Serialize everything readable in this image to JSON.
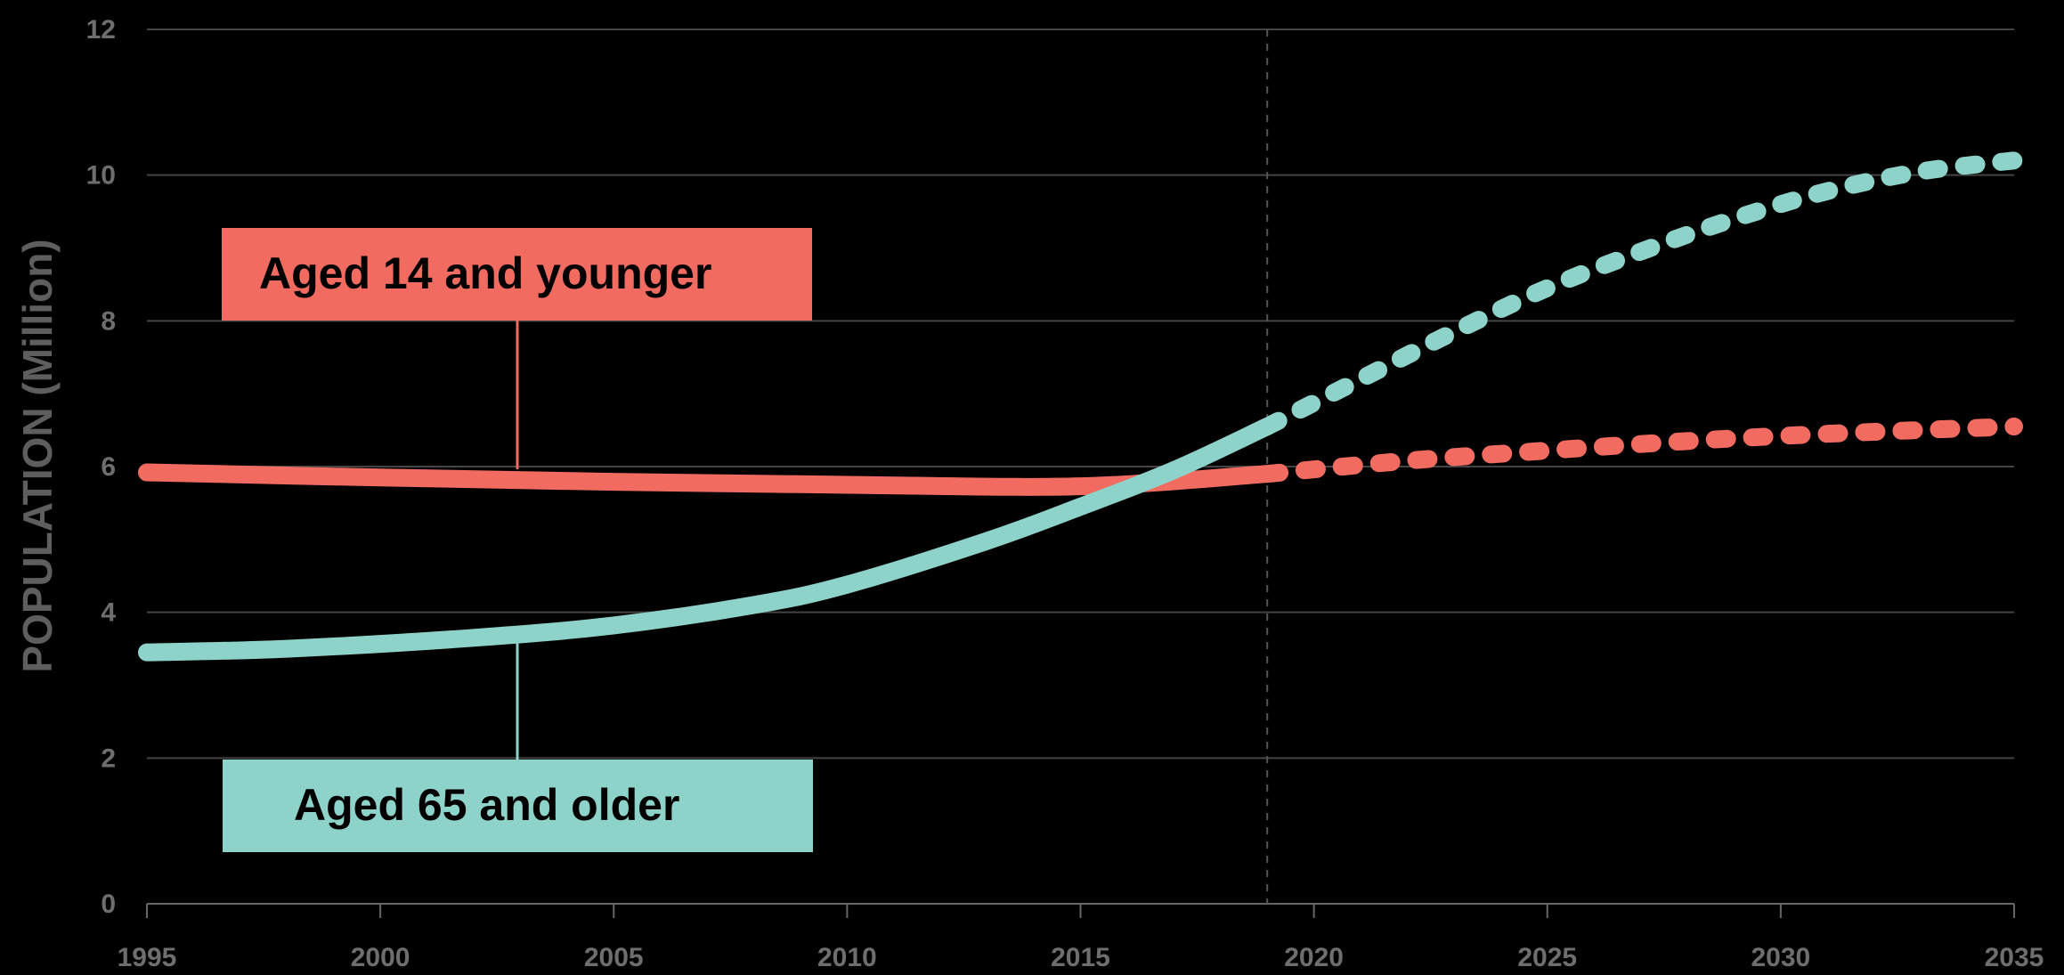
{
  "chart_data": {
    "type": "line",
    "xlabel": "",
    "ylabel": "POPULATION (Million)",
    "xlim": [
      1995,
      2035
    ],
    "ylim": [
      0,
      12
    ],
    "x_ticks": [
      "1995",
      "2000",
      "2005",
      "2010",
      "2015",
      "2020",
      "2025",
      "2030",
      "2035"
    ],
    "y_ticks": [
      "0",
      "2",
      "4",
      "6",
      "8",
      "10",
      "12"
    ],
    "grid": "horizontal",
    "projection_start": 2019,
    "series": [
      {
        "name": "Aged 14 and younger",
        "color": "#f26b60",
        "actual": {
          "x": [
            1995,
            2000,
            2005,
            2010,
            2015,
            2019
          ],
          "y": [
            5.92,
            5.85,
            5.79,
            5.75,
            5.73,
            5.9
          ]
        },
        "projected": {
          "x": [
            2019,
            2022,
            2025,
            2028,
            2031,
            2035
          ],
          "y": [
            5.9,
            6.08,
            6.22,
            6.35,
            6.45,
            6.55
          ]
        }
      },
      {
        "name": "Aged 65 and older",
        "color": "#8ed3c9",
        "actual": {
          "x": [
            1995,
            1998,
            2002,
            2005,
            2008,
            2010,
            2013,
            2015,
            2017,
            2019
          ],
          "y": [
            3.45,
            3.5,
            3.65,
            3.82,
            4.1,
            4.38,
            4.98,
            5.45,
            5.95,
            6.55
          ]
        },
        "projected": {
          "x": [
            2019,
            2021,
            2023,
            2025,
            2027,
            2029,
            2031,
            2033,
            2035
          ],
          "y": [
            6.55,
            7.2,
            7.85,
            8.45,
            8.95,
            9.4,
            9.78,
            10.05,
            10.2
          ]
        }
      }
    ]
  }
}
